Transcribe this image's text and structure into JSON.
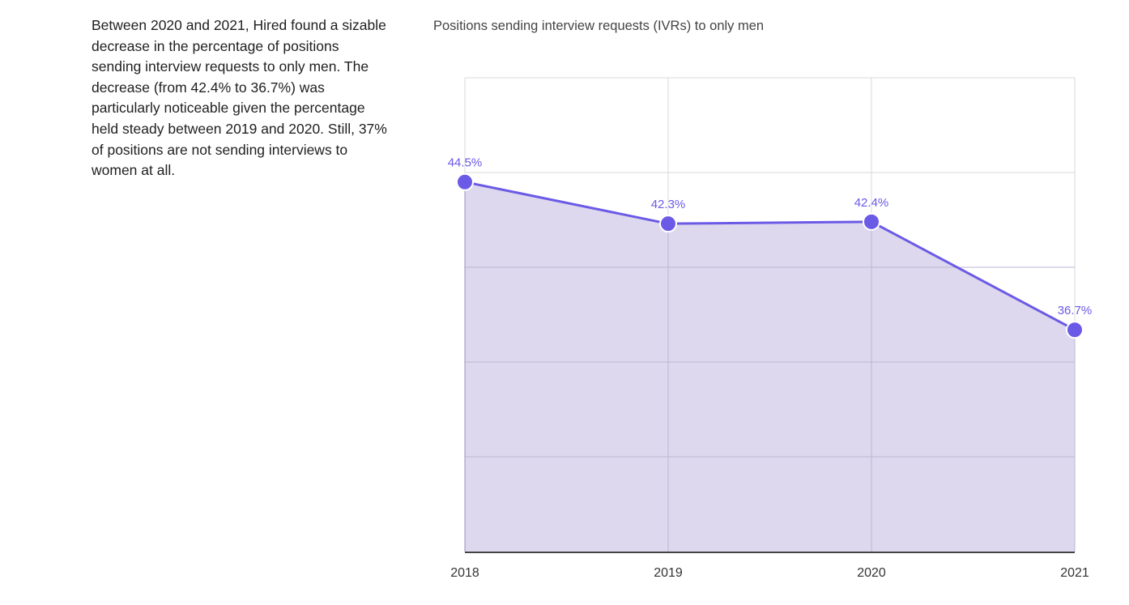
{
  "intro": {
    "text": "Between 2020 and 2021, Hired found a sizable decrease in the percentage of positions sending interview requests to only men. The decrease (from 42.4% to 36.7%) was particularly noticeable given the percentage held steady between 2019 and 2020. Still, 37% of positions are not sending interviews to women at all."
  },
  "chart_data": {
    "type": "area",
    "title": "Positions sending interview requests (IVRs) to only men",
    "xlabel": "",
    "ylabel": "",
    "categories": [
      "2018",
      "2019",
      "2020",
      "2021"
    ],
    "series": [
      {
        "values": [
          44.5,
          42.3,
          42.4,
          36.7
        ],
        "labels": [
          "44.5%",
          "42.3%",
          "42.4%",
          "36.7%"
        ]
      }
    ],
    "ylim": [
      25,
      50
    ],
    "grid": true,
    "colors": {
      "line": "#6b5ae6",
      "fill": "#dbd6ec",
      "grid": "#d9d9d9",
      "axis": "#444444"
    }
  }
}
